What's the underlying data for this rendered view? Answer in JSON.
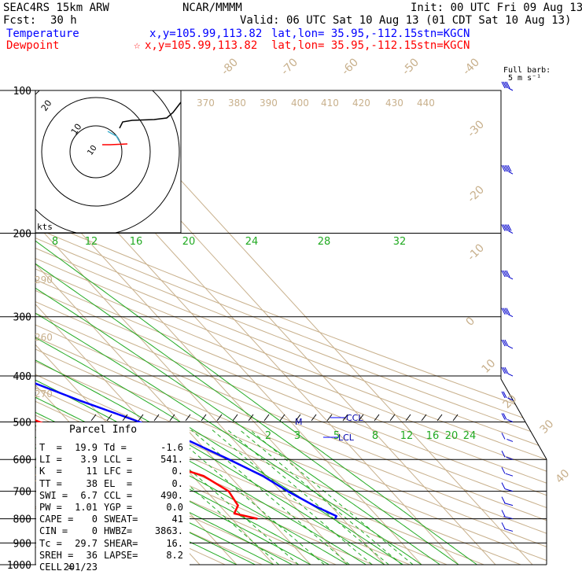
{
  "header": {
    "model": "SEAC4RS 15km ARW",
    "center": "NCAR/MMMM",
    "init": "Init: 00 UTC Fri 09 Aug 13",
    "fcst_label": "Fcst:",
    "fcst_value": "30 h",
    "valid": "Valid: 06 UTC Sat 10 Aug 13 (01 CDT Sat 10 Aug 13)",
    "temp_label": "Temperature",
    "temp_xy": "x,y=105.99,113.82",
    "temp_latlon": "lat,lon= 35.95,-112.15",
    "temp_stn": "stn=KGCN",
    "dew_label": "Dewpoint",
    "dew_xy": "x,y=105.99,113.82",
    "dew_latlon": "lat,lon= 35.95,-112.15",
    "dew_stn": "stn=KGCN",
    "barb_key_1": "Full barb:",
    "barb_key_2": "5 m s⁻¹"
  },
  "parcel_info": {
    "title": "Parcel Info",
    "rows": [
      [
        "T  =",
        "19.9",
        "Td =",
        "-1.6"
      ],
      [
        "LI =",
        "3.9",
        "LCL =",
        "541."
      ],
      [
        "K  =",
        "11",
        "LFC =",
        "0."
      ],
      [
        "TT =",
        "38",
        "EL  =",
        "0."
      ],
      [
        "SWI =",
        "6.7",
        "CCL =",
        "490."
      ],
      [
        "PW =",
        "1.01",
        "YGP =",
        "0.0"
      ],
      [
        "CAPE =",
        "0",
        "SWEAT=",
        "41"
      ],
      [
        "CIN =",
        "0",
        "HWBZ=",
        "3863."
      ],
      [
        "Tc =",
        "29.7",
        "SHEAR=",
        "16."
      ],
      [
        "SREH =",
        "36",
        "LAPSE=",
        "8.2"
      ],
      [
        "CELL =",
        "201/23",
        "",
        ""
      ]
    ]
  },
  "chart_data": {
    "type": "line",
    "title": "",
    "chart_kind": "Skew-T log-P sounding",
    "pressure_levels": [
      100,
      200,
      300,
      400,
      500,
      600,
      700,
      800,
      900,
      1000
    ],
    "pressure_range": [
      1000,
      100
    ],
    "isotherm_labels": [
      -80,
      -70,
      -60,
      -50,
      -40,
      -30,
      -20,
      -10,
      0,
      10,
      20,
      30,
      40
    ],
    "theta_labels": [
      250,
      260,
      270,
      280,
      290,
      370,
      380,
      390,
      400,
      410,
      420,
      430,
      440
    ],
    "mixing_ratio_labels_upper": [
      "8",
      "12",
      "16",
      "20",
      "24",
      "28",
      "32"
    ],
    "mixing_ratio_labels_lower": [
      "2",
      "3",
      "5",
      "8",
      "12",
      "16",
      "20",
      "24"
    ],
    "level_markers": [
      "CCL",
      "LCL",
      "M"
    ],
    "series": [
      {
        "name": "Temperature",
        "color": "#0000ff",
        "points": [
          [
            100,
            -62
          ],
          [
            120,
            -65
          ],
          [
            150,
            -70
          ],
          [
            180,
            -75
          ],
          [
            200,
            -73.5
          ],
          [
            250,
            -64
          ],
          [
            300,
            -54
          ],
          [
            350,
            -43.5
          ],
          [
            400,
            -33
          ],
          [
            450,
            -22
          ],
          [
            500,
            -11
          ],
          [
            550,
            -2
          ],
          [
            600,
            4
          ],
          [
            650,
            9
          ],
          [
            700,
            12
          ],
          [
            750,
            15.5
          ],
          [
            790,
            19
          ],
          [
            800,
            18
          ]
        ]
      },
      {
        "name": "Dewpoint",
        "color": "#ff0000",
        "points": [
          [
            100,
            -84
          ],
          [
            120,
            -90
          ],
          [
            150,
            -96
          ],
          [
            200,
            -99
          ],
          [
            215,
            -100
          ],
          [
            240,
            -101
          ],
          [
            270,
            -96
          ],
          [
            300,
            -89
          ],
          [
            350,
            -75
          ],
          [
            400,
            -56
          ],
          [
            450,
            -48
          ],
          [
            500,
            -38
          ],
          [
            550,
            -28
          ],
          [
            600,
            -17
          ],
          [
            650,
            -7
          ],
          [
            700,
            -4
          ],
          [
            750,
            -5
          ],
          [
            780,
            -8
          ],
          [
            800,
            -3
          ]
        ]
      }
    ],
    "wind_barbs_kts_dir": [
      [
        100,
        40,
        250
      ],
      [
        150,
        45,
        255
      ],
      [
        200,
        50,
        250
      ],
      [
        250,
        40,
        245
      ],
      [
        300,
        35,
        240
      ],
      [
        350,
        30,
        235
      ],
      [
        400,
        25,
        230
      ],
      [
        450,
        20,
        225
      ],
      [
        500,
        15,
        220
      ],
      [
        550,
        10,
        210
      ],
      [
        600,
        10,
        200
      ],
      [
        650,
        5,
        190
      ],
      [
        700,
        5,
        180
      ],
      [
        750,
        8,
        170
      ],
      [
        800,
        10,
        160
      ],
      [
        850,
        5,
        170
      ]
    ],
    "hodograph": {
      "ring_labels": [
        "20",
        "10"
      ],
      "units_label": "kts"
    }
  }
}
